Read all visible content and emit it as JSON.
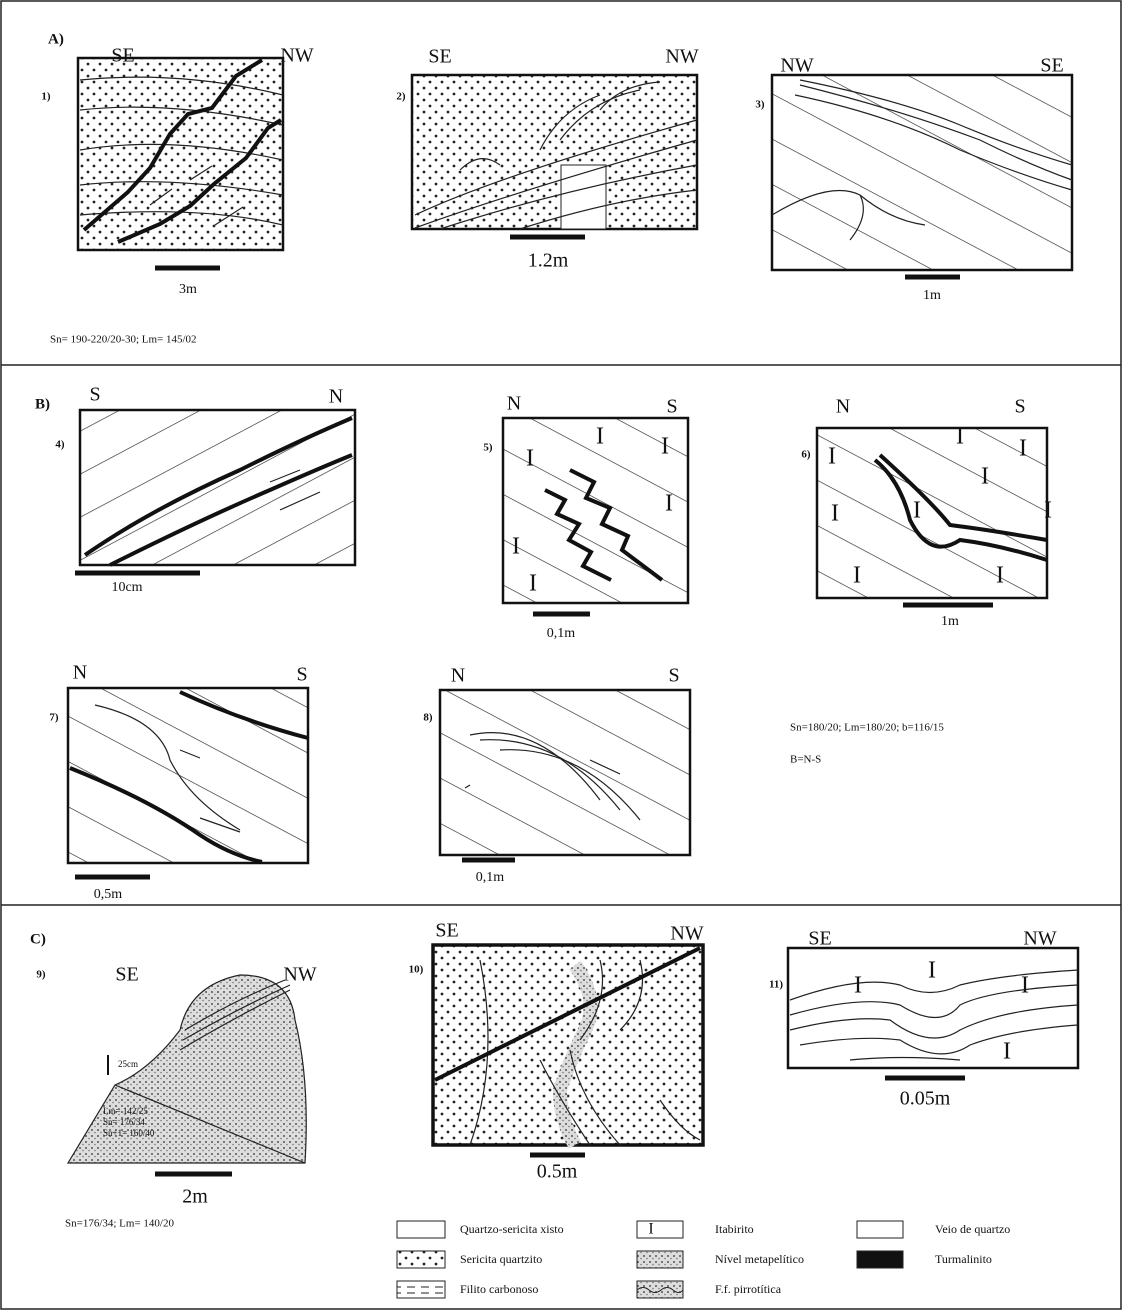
{
  "panels": [
    {
      "label": "A)",
      "sketches": [
        {
          "number": "1)",
          "left": "SE",
          "right": "NW",
          "scale": "3m"
        },
        {
          "number": "2)",
          "left": "SE",
          "right": "NW",
          "scale": "1.2m"
        },
        {
          "number": "3)",
          "left": "NW",
          "right": "SE",
          "scale": "1m"
        }
      ],
      "notes": [
        "Sn= 190-220/20-30; Lm= 145/02"
      ]
    },
    {
      "label": "B)",
      "sketches": [
        {
          "number": "4)",
          "left": "S",
          "right": "N",
          "scale": "10cm"
        },
        {
          "number": "5)",
          "left": "N",
          "right": "S",
          "scale": "0,1m"
        },
        {
          "number": "6)",
          "left": "N",
          "right": "S",
          "scale": "1m"
        },
        {
          "number": "7)",
          "left": "N",
          "right": "S",
          "scale": "0,5m"
        },
        {
          "number": "8)",
          "left": "N",
          "right": "S",
          "scale": "0,1m"
        }
      ],
      "notes": [
        "Sn=180/20;   Lm=180/20;   b=116/15",
        "B=N-S"
      ]
    },
    {
      "label": "C)",
      "sketches": [
        {
          "number": "9)",
          "left": "SE",
          "right": "NW",
          "scale": "2m",
          "annotations": [
            "25cm",
            "Lm= 142/25",
            "Sn= 176/34",
            "Sn+1= 160/40"
          ]
        },
        {
          "number": "10)",
          "left": "SE",
          "right": "NW",
          "scale": "0.5m"
        },
        {
          "number": "11)",
          "left": "SE",
          "right": "NW",
          "scale": "0.05m"
        }
      ],
      "notes": [
        "Sn=176/34;  Lm= 140/20"
      ]
    }
  ],
  "legend": [
    {
      "label": "Quartzo-sericita xisto"
    },
    {
      "label": "Itabirito",
      "symbol": "I"
    },
    {
      "label": "Veio de quartzo"
    },
    {
      "label": "Sericita quartzito"
    },
    {
      "label": "Nível  metapelítico"
    },
    {
      "label": "Turmalinito"
    },
    {
      "label": "Filito carbonoso"
    },
    {
      "label": "F.f. pirrotítica"
    }
  ]
}
